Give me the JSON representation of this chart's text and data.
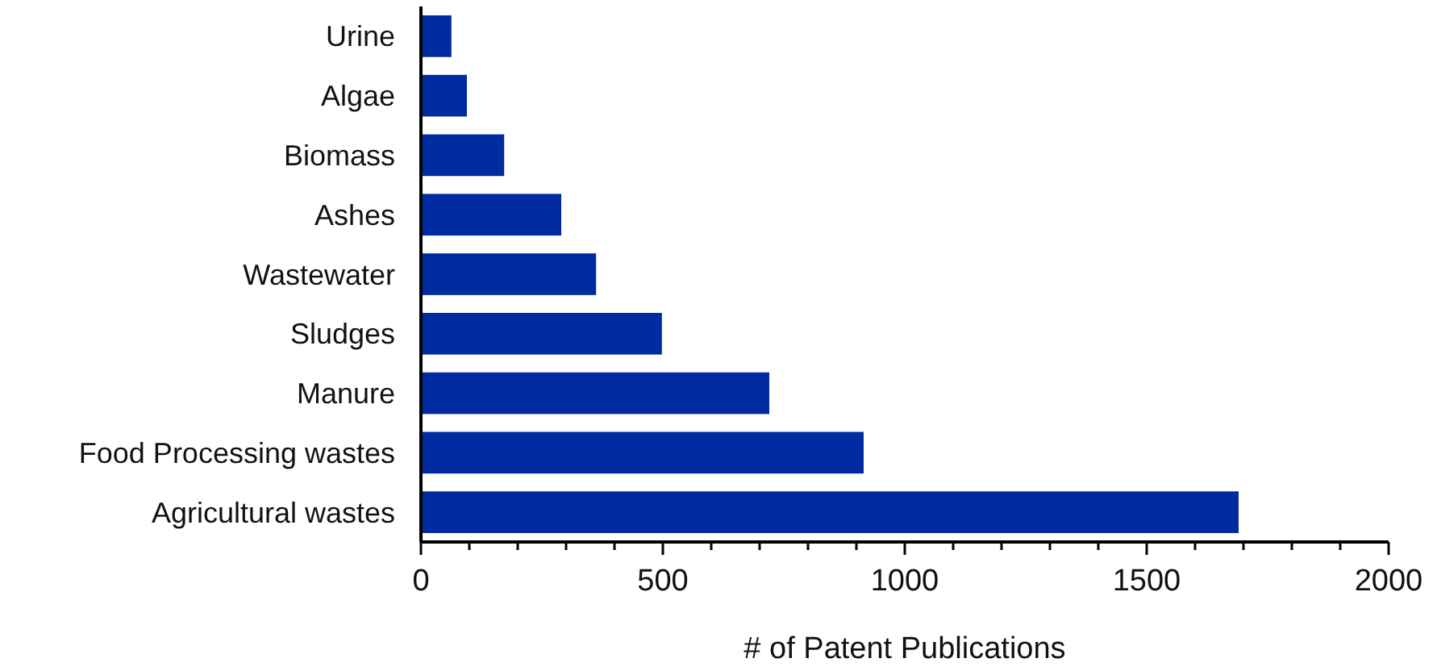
{
  "chart_data": {
    "type": "bar",
    "orientation": "horizontal",
    "xlabel": "# of Patent Publications",
    "categories": [
      "Urine",
      "Algae",
      "Biomass",
      "Ashes",
      "Wastewater",
      "Sludges",
      "Manure",
      "Food Processing wastes",
      "Agricultural wastes"
    ],
    "values": [
      63,
      95,
      172,
      290,
      362,
      498,
      720,
      915,
      1690
    ],
    "color": "#002aa0",
    "xlim": [
      0,
      2000
    ],
    "xticks": [
      0,
      {
        "value": 100,
        "label": null
      },
      {
        "value": 200,
        "label": null
      },
      {
        "value": 300,
        "label": null
      },
      {
        "value": 400,
        "label": null
      },
      500,
      {
        "value": 600,
        "label": null
      },
      {
        "value": 700,
        "label": null
      },
      {
        "value": 800,
        "label": null
      },
      {
        "value": 900,
        "label": null
      },
      1000,
      {
        "value": 1100,
        "label": null
      },
      {
        "value": 1200,
        "label": null
      },
      {
        "value": 1300,
        "label": null
      },
      {
        "value": 1400,
        "label": null
      },
      1500,
      {
        "value": 1600,
        "label": null
      },
      {
        "value": 1700,
        "label": null
      },
      {
        "value": 1800,
        "label": null
      },
      {
        "value": 1900,
        "label": null
      },
      2000
    ],
    "grid": false
  }
}
